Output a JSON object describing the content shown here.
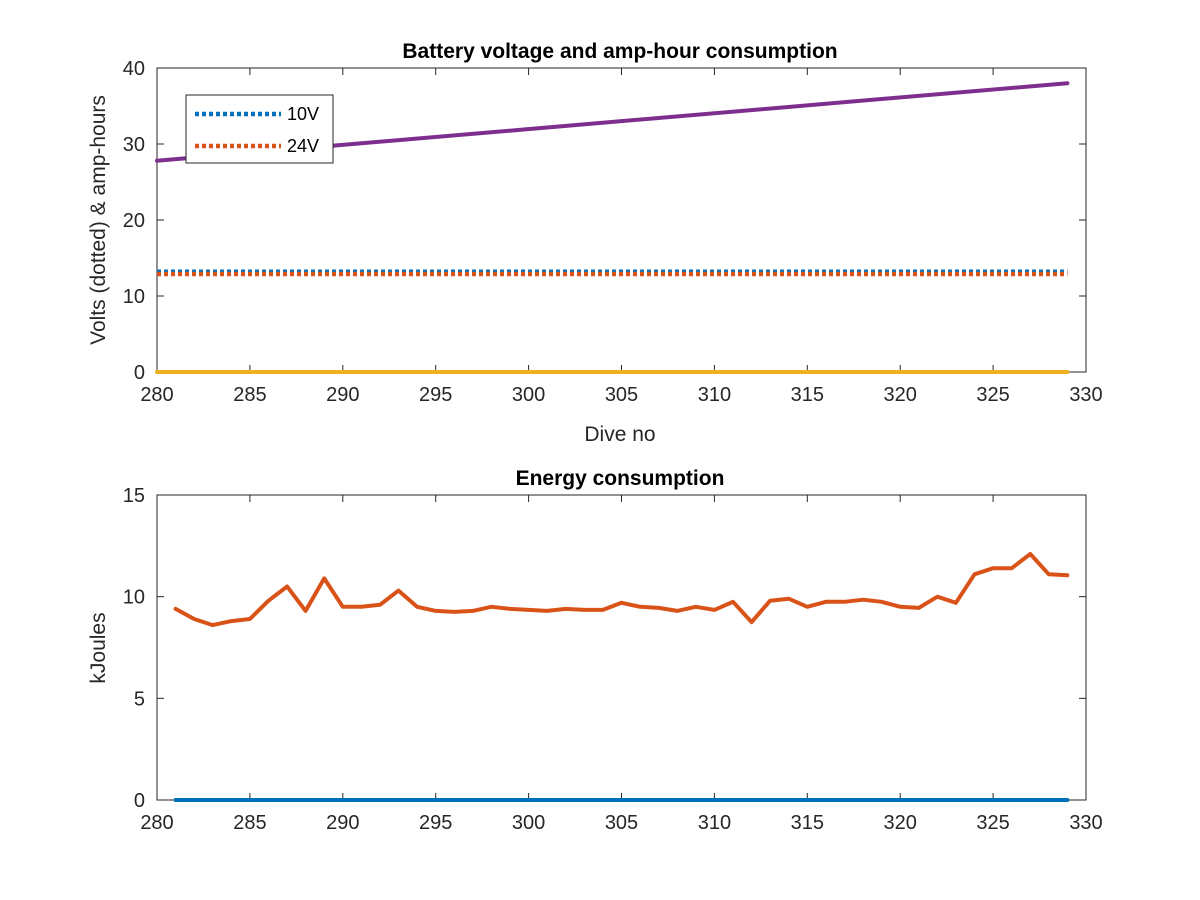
{
  "colors": {
    "blue": "#0072BD",
    "orange": "#D95319",
    "yellow": "#EDB120",
    "purple": "#7E2F8E",
    "axis": "#262626"
  },
  "chart_data": [
    {
      "type": "line",
      "title": "Battery voltage and amp-hour consumption",
      "xlabel": "Dive no",
      "ylabel": "Volts (dotted) & amp-hours",
      "xlim": [
        280,
        330
      ],
      "ylim": [
        0,
        40
      ],
      "xticks": [
        "280",
        "285",
        "290",
        "295",
        "300",
        "305",
        "310",
        "315",
        "320",
        "325",
        "330"
      ],
      "yticks": [
        "0",
        "10",
        "20",
        "30",
        "40"
      ],
      "legend": {
        "placement": "top-left",
        "entries": [
          "10V",
          "24V"
        ]
      },
      "series": [
        {
          "name": "10V",
          "style": "dotted",
          "color": "#0072BD",
          "x": [
            280,
            329
          ],
          "y": [
            13.2,
            13.2
          ]
        },
        {
          "name": "24V",
          "style": "dotted",
          "color": "#D95319",
          "x": [
            280,
            329
          ],
          "y": [
            12.9,
            12.9
          ]
        },
        {
          "style": "solid",
          "color": "#7E2F8E",
          "x": [
            280,
            329
          ],
          "y": [
            27.8,
            38.0
          ]
        },
        {
          "style": "solid",
          "color": "#EDB120",
          "x": [
            280,
            329
          ],
          "y": [
            0,
            0
          ]
        }
      ]
    },
    {
      "type": "line",
      "title": "Energy consumption",
      "xlabel": "",
      "ylabel": "kJoules",
      "xlim": [
        280,
        330
      ],
      "ylim": [
        0,
        15
      ],
      "xticks": [
        "280",
        "285",
        "290",
        "295",
        "300",
        "305",
        "310",
        "315",
        "320",
        "325",
        "330"
      ],
      "yticks": [
        "0",
        "5",
        "10",
        "15"
      ],
      "series": [
        {
          "style": "solid",
          "color": "#D95319",
          "x": [
            281,
            282,
            283,
            284,
            285,
            286,
            287,
            288,
            289,
            290,
            291,
            292,
            293,
            294,
            295,
            296,
            297,
            298,
            299,
            300,
            301,
            302,
            303,
            304,
            305,
            306,
            307,
            308,
            309,
            310,
            311,
            312,
            313,
            314,
            315,
            316,
            317,
            318,
            319,
            320,
            321,
            322,
            323,
            324,
            325,
            326,
            327,
            328,
            329
          ],
          "y": [
            9.4,
            8.9,
            8.6,
            8.8,
            8.9,
            9.8,
            10.5,
            9.3,
            10.9,
            9.5,
            9.5,
            9.6,
            10.3,
            9.5,
            9.3,
            9.25,
            9.3,
            9.5,
            9.4,
            9.35,
            9.3,
            9.4,
            9.35,
            9.35,
            9.7,
            9.5,
            9.45,
            9.3,
            9.5,
            9.35,
            9.75,
            8.75,
            9.8,
            9.9,
            9.5,
            9.75,
            9.75,
            9.85,
            9.75,
            9.5,
            9.45,
            10.0,
            9.7,
            11.1,
            11.4,
            11.4,
            12.1,
            11.1,
            11.05
          ]
        },
        {
          "style": "solid",
          "color": "#0072BD",
          "x": [
            281,
            329
          ],
          "y": [
            0,
            0
          ]
        }
      ]
    }
  ]
}
